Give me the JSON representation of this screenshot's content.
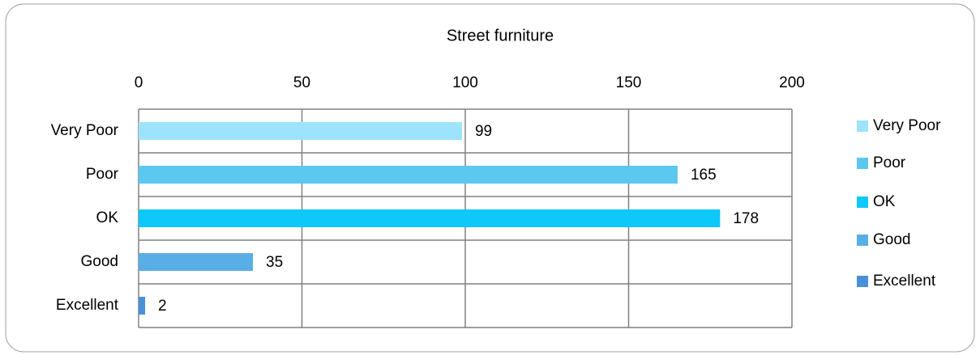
{
  "chart_data": {
    "type": "barh",
    "title": "Street furniture",
    "categories": [
      "Very Poor",
      "Poor",
      "OK",
      "Good",
      "Excellent"
    ],
    "values": [
      99,
      165,
      178,
      35,
      2
    ],
    "colors": [
      "#9de3fb",
      "#5bc8ef",
      "#0dc8f8",
      "#5aaee6",
      "#4a90d9"
    ],
    "xlim": [
      0,
      200
    ],
    "xticks": [
      0,
      50,
      100,
      150,
      200
    ],
    "grid": true,
    "legend": "right"
  }
}
